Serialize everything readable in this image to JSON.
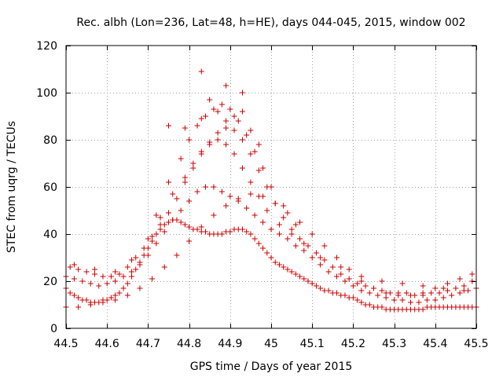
{
  "chart_data": {
    "type": "scatter",
    "title": "Rec. albh (Lon=236, Lat=48, h=HE), days 044-045, 2015, window 002",
    "xlabel": "GPS time / Days of year 2015",
    "ylabel": "STEC from uqrg / TECUs",
    "xlim": [
      44.5,
      45.5
    ],
    "ylim": [
      0,
      120
    ],
    "xticks": [
      44.5,
      44.6,
      44.7,
      44.8,
      44.9,
      45,
      45.1,
      45.2,
      45.3,
      45.4,
      45.5
    ],
    "xtick_labels": [
      "44.5",
      "44.6",
      "44.7",
      "44.8",
      "44.9",
      "45",
      "45.1",
      "45.2",
      "45.3",
      "45.4",
      "45.5"
    ],
    "yticks": [
      0,
      20,
      40,
      60,
      80,
      100,
      120
    ],
    "ytick_labels": [
      "0",
      "20",
      "40",
      "60",
      "80",
      "100",
      "120"
    ],
    "grid": true,
    "marker": "plus",
    "color": "#cc0000",
    "series": [
      {
        "name": "STEC",
        "x": [
          44.5,
          44.51,
          44.52,
          44.53,
          44.54,
          44.55,
          44.56,
          44.57,
          44.58,
          44.59,
          44.6,
          44.61,
          44.62,
          44.63,
          44.64,
          44.65,
          44.66,
          44.67,
          44.68,
          44.69,
          44.7,
          44.71,
          44.72,
          44.73,
          44.74,
          44.75,
          44.76,
          44.77,
          44.78,
          44.79,
          44.8,
          44.81,
          44.82,
          44.83,
          44.84,
          44.85,
          44.86,
          44.87,
          44.88,
          44.89,
          44.9,
          44.91,
          44.92,
          44.93,
          44.94,
          44.95,
          44.96,
          44.97,
          44.98,
          44.99,
          45.0,
          45.01,
          45.02,
          45.03,
          45.04,
          45.05,
          45.06,
          45.07,
          45.08,
          45.09,
          45.1,
          45.11,
          45.12,
          45.13,
          45.14,
          45.15,
          45.16,
          45.17,
          45.18,
          45.19,
          45.2,
          45.21,
          45.22,
          45.23,
          45.24,
          45.25,
          45.26,
          45.27,
          45.28,
          45.29,
          45.3,
          45.31,
          45.32,
          45.33,
          45.34,
          45.35,
          45.36,
          45.37,
          45.38,
          45.39,
          45.4,
          45.41,
          45.42,
          45.43,
          45.44,
          45.45,
          45.46,
          45.47,
          45.48,
          45.49,
          45.5,
          44.5,
          44.52,
          44.54,
          44.56,
          44.58,
          44.6,
          44.62,
          44.64,
          44.66,
          44.68,
          44.7,
          44.72,
          44.74,
          44.76,
          44.78,
          44.8,
          44.82,
          44.84,
          44.86,
          44.88,
          44.9,
          44.92,
          44.94,
          44.96,
          44.98,
          45.0,
          45.02,
          45.04,
          45.06,
          45.08,
          45.1,
          45.12,
          45.14,
          45.16,
          45.18,
          45.2,
          45.22,
          45.24,
          45.26,
          45.28,
          45.3,
          45.32,
          45.34,
          45.36,
          45.38,
          45.4,
          45.42,
          45.44,
          45.46,
          45.48,
          45.5,
          44.51,
          44.53,
          44.55,
          44.57,
          44.59,
          44.61,
          44.63,
          44.65,
          44.67,
          44.69,
          44.71,
          44.73,
          44.75,
          44.77,
          44.79,
          44.81,
          44.83,
          44.85,
          44.87,
          44.89,
          44.91,
          44.93,
          44.95,
          44.97,
          44.99,
          45.01,
          45.03,
          45.05,
          45.07,
          45.09,
          45.11,
          45.13,
          45.15,
          45.17,
          45.19,
          45.21,
          45.23,
          45.25,
          45.27,
          45.29,
          45.31,
          45.33,
          45.35,
          45.37,
          45.39,
          45.41,
          45.43,
          45.45,
          45.47,
          45.49,
          44.5,
          44.53,
          44.56,
          44.59,
          44.62,
          44.65,
          44.68,
          44.71,
          44.74,
          44.77,
          44.8,
          44.83,
          44.86,
          44.89,
          44.92,
          44.95,
          44.98,
          45.01,
          45.04,
          45.07,
          45.1,
          45.13,
          45.16,
          45.19,
          45.22,
          45.25,
          45.28,
          45.31,
          45.34,
          45.37,
          45.4,
          45.43,
          45.46,
          45.49,
          44.52,
          44.57,
          44.62,
          44.66,
          44.7,
          44.73,
          44.76,
          44.79,
          44.81,
          44.83,
          44.85,
          44.87,
          44.89,
          44.91,
          44.93,
          44.95,
          44.97,
          44.99,
          45.02,
          45.05,
          45.08,
          45.12,
          45.17,
          45.22,
          45.27,
          45.32,
          45.37,
          45.42,
          45.47,
          44.72,
          44.75,
          44.78,
          44.8,
          44.82,
          44.84,
          44.86,
          44.88,
          44.9,
          44.92,
          44.94,
          44.96,
          44.98,
          45.0,
          45.03,
          45.06,
          44.75,
          44.79,
          44.83,
          44.85,
          44.87,
          44.89,
          44.91,
          44.93,
          44.95,
          44.97,
          44.83,
          44.89,
          44.93
        ],
        "y": [
          17,
          15,
          14,
          13,
          12,
          12,
          11,
          11,
          11,
          12,
          12,
          13,
          14,
          15,
          17,
          19,
          22,
          25,
          28,
          31,
          34,
          37,
          40,
          42,
          44,
          45,
          46,
          46,
          45,
          44,
          43,
          42,
          42,
          41,
          41,
          40,
          40,
          40,
          40,
          41,
          41,
          42,
          42,
          42,
          41,
          40,
          38,
          36,
          34,
          32,
          30,
          28,
          27,
          26,
          25,
          24,
          23,
          22,
          21,
          20,
          19,
          18,
          17,
          16,
          16,
          15,
          15,
          14,
          14,
          13,
          13,
          12,
          11,
          10,
          10,
          9,
          9,
          9,
          8,
          8,
          8,
          8,
          8,
          8,
          8,
          8,
          8,
          8,
          9,
          9,
          9,
          9,
          9,
          9,
          9,
          9,
          9,
          9,
          9,
          9,
          9,
          22,
          21,
          20,
          19,
          18,
          19,
          20,
          22,
          24,
          27,
          31,
          36,
          41,
          46,
          50,
          54,
          58,
          60,
          60,
          58,
          56,
          54,
          51,
          48,
          45,
          42,
          40,
          38,
          35,
          33,
          30,
          27,
          24,
          22,
          20,
          18,
          16,
          15,
          14,
          13,
          12,
          12,
          11,
          11,
          12,
          12,
          13,
          14,
          15,
          16,
          17,
          26,
          25,
          24,
          23,
          22,
          22,
          23,
          26,
          30,
          34,
          39,
          44,
          49,
          55,
          62,
          68,
          74,
          79,
          83,
          85,
          84,
          80,
          74,
          67,
          60,
          53,
          47,
          42,
          38,
          35,
          32,
          29,
          26,
          23,
          21,
          19,
          18,
          17,
          16,
          15,
          15,
          15,
          14,
          14,
          15,
          15,
          16,
          17,
          18,
          20,
          9,
          9,
          10,
          11,
          12,
          14,
          17,
          21,
          26,
          31,
          37,
          43,
          48,
          52,
          55,
          57,
          56,
          53,
          49,
          45,
          40,
          35,
          30,
          25,
          20,
          17,
          15,
          14,
          14,
          15,
          17,
          19,
          21,
          23,
          27,
          25,
          24,
          29,
          38,
          47,
          57,
          64,
          70,
          75,
          78,
          80,
          78,
          74,
          68,
          62,
          56,
          50,
          44,
          40,
          36,
          30,
          26,
          22,
          20,
          19,
          18,
          17,
          16,
          48,
          62,
          72,
          80,
          86,
          90,
          93,
          95,
          93,
          88,
          82,
          75,
          68,
          60,
          52,
          44,
          86,
          85,
          89,
          97,
          92,
          103,
          90,
          100,
          84,
          78,
          109,
          88,
          92
        ]
      }
    ]
  }
}
